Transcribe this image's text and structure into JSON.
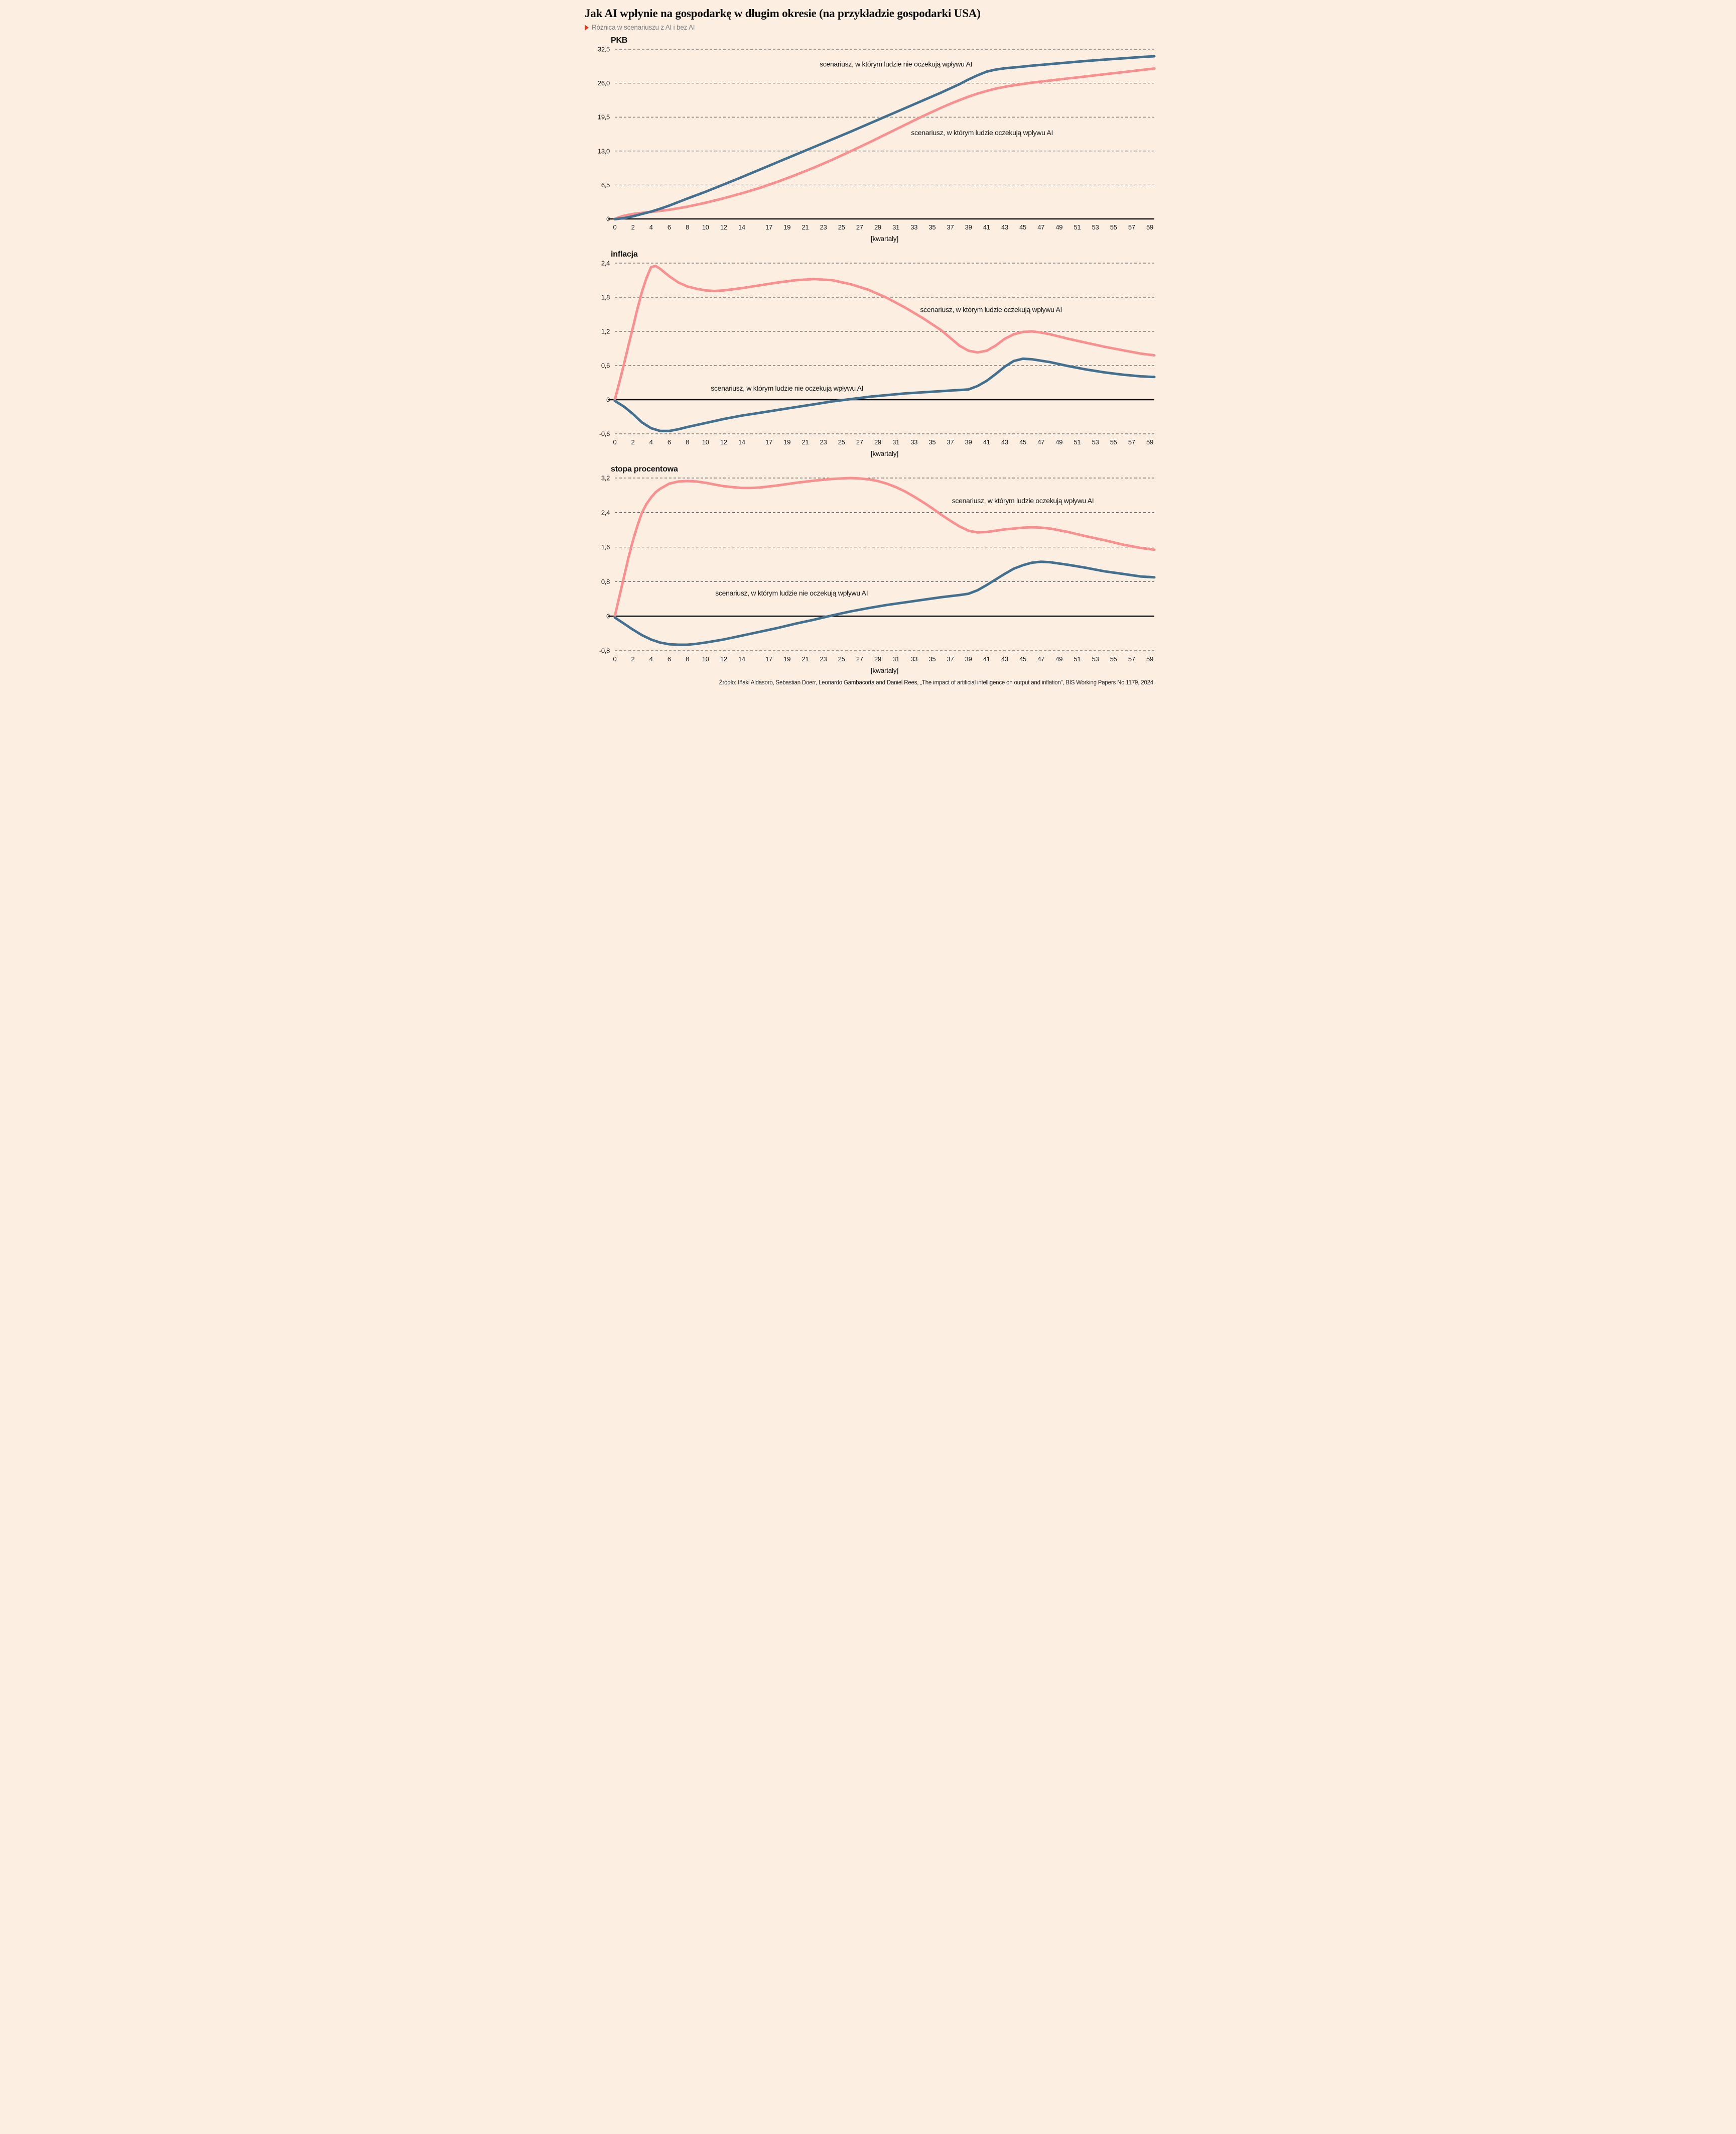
{
  "page": {
    "title": "Jak AI wpłynie na gospodarkę w długim okresie (na przykładzie gospodarki USA)",
    "subtitle": "Różnica w scenariuszu z AI i bez AI",
    "source": "Źródło: Iñaki Aldasoro, Sebastian Doerr, Leonardo Gambacorta and Daniel Rees, „The impact of artificial intelligence on output and inflation”, BIS Working Papers No 1179, 2024",
    "colors": {
      "background": "#fcefe2",
      "blue": "#44708f",
      "pink": "#f9908f",
      "grid": "#3d3d3d",
      "axis": "#111111",
      "text": "#141414",
      "subtitle_gray": "#7d7d7d",
      "accent_red": "#e2371d"
    },
    "icons": {
      "subtitle_marker": "red-triangle-icon"
    }
  },
  "chart_data": [
    {
      "type": "line",
      "title": "PKB",
      "xlabel": "[kwartały]",
      "xlim": [
        0,
        59.5
      ],
      "ylim": [
        0,
        32.5
      ],
      "grid": "horizontal-dashed",
      "legend_position": "inline-annotations",
      "x_ticks": [
        0,
        2,
        4,
        6,
        8,
        10,
        12,
        14,
        17,
        19,
        21,
        23,
        25,
        27,
        29,
        31,
        33,
        35,
        37,
        39,
        41,
        43,
        45,
        47,
        49,
        51,
        53,
        55,
        57,
        59
      ],
      "y_tick_values": [
        32.5,
        26.0,
        19.5,
        13.0,
        6.5,
        0
      ],
      "y_tick_labels": [
        "32,5",
        "26,0",
        "19,5",
        "13,0",
        "6,5",
        "0"
      ],
      "series": [
        {
          "name": "scenariusz, w którym ludzie oczekują wpływu AI",
          "color": "pink",
          "label_x": 40.5,
          "label_y": 16.5,
          "x": [
            0,
            0.5,
            1,
            2,
            3,
            4,
            5,
            6,
            8,
            10,
            12,
            14,
            16,
            18,
            20,
            22,
            24,
            26,
            28,
            30,
            32,
            34,
            36,
            37,
            38,
            39,
            40,
            41,
            42,
            43,
            44,
            46,
            48,
            50,
            52,
            54,
            56,
            58,
            59.5
          ],
          "y": [
            0,
            0.35,
            0.6,
            0.95,
            1.15,
            1.35,
            1.55,
            1.75,
            2.35,
            3.1,
            3.95,
            4.9,
            5.95,
            7.15,
            8.45,
            9.85,
            11.35,
            12.95,
            14.6,
            16.3,
            18.0,
            19.7,
            21.3,
            22.05,
            22.75,
            23.4,
            24.0,
            24.5,
            24.95,
            25.3,
            25.6,
            26.1,
            26.5,
            26.9,
            27.3,
            27.7,
            28.1,
            28.5,
            28.8
          ]
        },
        {
          "name": "scenariusz, w którym ludzie nie oczekują wpływu AI",
          "color": "blue",
          "label_x": 31,
          "label_y": 29.6,
          "x": [
            0,
            1,
            2,
            3,
            4,
            5,
            6,
            8,
            10,
            12,
            14,
            16,
            18,
            20,
            22,
            24,
            26,
            28,
            30,
            32,
            34,
            36,
            38,
            39,
            40,
            41,
            42,
            43,
            44,
            46,
            48,
            50,
            52,
            54,
            56,
            58,
            59.5
          ],
          "y": [
            -0.05,
            0.15,
            0.5,
            0.95,
            1.4,
            1.95,
            2.55,
            3.9,
            5.2,
            6.6,
            8.0,
            9.45,
            10.9,
            12.35,
            13.8,
            15.25,
            16.7,
            18.2,
            19.7,
            21.2,
            22.7,
            24.2,
            25.8,
            26.7,
            27.5,
            28.2,
            28.6,
            28.85,
            29.0,
            29.35,
            29.65,
            29.95,
            30.25,
            30.5,
            30.75,
            31.0,
            31.15
          ]
        }
      ]
    },
    {
      "type": "line",
      "title": "inflacja",
      "xlabel": "[kwartały]",
      "xlim": [
        0,
        59.5
      ],
      "ylim": [
        -0.6,
        2.4
      ],
      "grid": "horizontal-dashed",
      "legend_position": "inline-annotations",
      "x_ticks": [
        0,
        2,
        4,
        6,
        8,
        10,
        12,
        14,
        17,
        19,
        21,
        23,
        25,
        27,
        29,
        31,
        33,
        35,
        37,
        39,
        41,
        43,
        45,
        47,
        49,
        51,
        53,
        55,
        57,
        59
      ],
      "y_tick_values": [
        2.4,
        1.8,
        1.2,
        0.6,
        0,
        -0.6
      ],
      "y_tick_labels": [
        "2,4",
        "1,8",
        "1,2",
        "0,6",
        "0",
        "-0,6"
      ],
      "series": [
        {
          "name": "scenariusz, w którym ludzie oczekują wpływu AI",
          "color": "pink",
          "label_x": 41.5,
          "label_y": 1.58,
          "x": [
            0,
            0.5,
            1,
            1.5,
            2,
            2.5,
            3,
            3.5,
            4,
            4.5,
            5,
            6,
            7,
            8,
            9,
            10,
            11,
            12,
            14,
            16,
            18,
            20,
            22,
            24,
            26,
            28,
            30,
            32,
            34,
            36,
            38,
            39,
            40,
            41,
            42,
            43,
            44,
            45,
            46,
            47,
            48,
            50,
            52,
            54,
            56,
            58,
            59.5
          ],
          "y": [
            0,
            0.3,
            0.62,
            0.95,
            1.27,
            1.6,
            1.9,
            2.14,
            2.33,
            2.35,
            2.3,
            2.17,
            2.06,
            1.99,
            1.95,
            1.92,
            1.91,
            1.92,
            1.96,
            2.01,
            2.06,
            2.1,
            2.12,
            2.1,
            2.03,
            1.93,
            1.79,
            1.62,
            1.43,
            1.22,
            0.95,
            0.86,
            0.83,
            0.86,
            0.95,
            1.07,
            1.15,
            1.19,
            1.2,
            1.18,
            1.15,
            1.07,
            1.0,
            0.93,
            0.87,
            0.81,
            0.78
          ]
        },
        {
          "name": "scenariusz, w którym ludzie nie oczekują wpływu AI",
          "color": "blue",
          "label_x": 19,
          "label_y": 0.2,
          "x": [
            0,
            1,
            2,
            3,
            4,
            5,
            6,
            7,
            8,
            10,
            12,
            14,
            16,
            18,
            20,
            22,
            24,
            26,
            28,
            30,
            32,
            34,
            36,
            38,
            39,
            40,
            41,
            42,
            43,
            44,
            45,
            46,
            48,
            50,
            52,
            54,
            56,
            58,
            59.5
          ],
          "y": [
            -0.02,
            -0.12,
            -0.25,
            -0.4,
            -0.5,
            -0.55,
            -0.55,
            -0.52,
            -0.48,
            -0.41,
            -0.34,
            -0.28,
            -0.23,
            -0.18,
            -0.13,
            -0.08,
            -0.03,
            0.01,
            0.05,
            0.08,
            0.11,
            0.13,
            0.15,
            0.17,
            0.18,
            0.24,
            0.33,
            0.45,
            0.58,
            0.68,
            0.72,
            0.71,
            0.66,
            0.59,
            0.53,
            0.48,
            0.44,
            0.41,
            0.4
          ]
        }
      ]
    },
    {
      "type": "line",
      "title": "stopa procentowa",
      "xlabel": "[kwartały]",
      "xlim": [
        0,
        59.5
      ],
      "ylim": [
        -0.8,
        3.2
      ],
      "grid": "horizontal-dashed",
      "legend_position": "inline-annotations",
      "x_ticks": [
        0,
        2,
        4,
        6,
        8,
        10,
        12,
        14,
        17,
        19,
        21,
        23,
        25,
        27,
        29,
        31,
        33,
        35,
        37,
        39,
        41,
        43,
        45,
        47,
        49,
        51,
        53,
        55,
        57,
        59
      ],
      "y_tick_values": [
        3.2,
        2.4,
        1.6,
        0.8,
        0,
        -0.8
      ],
      "y_tick_labels": [
        "3,2",
        "2,4",
        "1,6",
        "0,8",
        "0",
        "-0,8"
      ],
      "series": [
        {
          "name": "scenariusz, w którym ludzie oczekują wpływu AI",
          "color": "pink",
          "label_x": 45,
          "label_y": 2.67,
          "x": [
            0,
            0.5,
            1,
            1.5,
            2,
            2.5,
            3,
            3.5,
            4,
            4.5,
            5,
            6,
            7,
            8,
            9,
            10,
            11,
            12,
            13,
            14,
            15,
            16,
            18,
            20,
            22,
            24,
            25,
            26,
            27,
            28,
            29,
            30,
            31,
            32,
            33,
            34,
            35,
            36,
            37,
            38,
            39,
            40,
            41,
            42,
            43,
            44,
            45,
            46,
            47,
            48,
            50,
            52,
            54,
            56,
            58,
            59.5
          ],
          "y": [
            0,
            0.45,
            0.9,
            1.35,
            1.75,
            2.1,
            2.4,
            2.6,
            2.75,
            2.87,
            2.95,
            3.07,
            3.12,
            3.13,
            3.12,
            3.09,
            3.05,
            3.01,
            2.99,
            2.97,
            2.97,
            2.98,
            3.03,
            3.09,
            3.14,
            3.18,
            3.19,
            3.2,
            3.19,
            3.17,
            3.13,
            3.07,
            2.99,
            2.89,
            2.77,
            2.64,
            2.5,
            2.35,
            2.21,
            2.08,
            1.98,
            1.94,
            1.95,
            1.98,
            2.01,
            2.03,
            2.05,
            2.06,
            2.05,
            2.03,
            1.95,
            1.85,
            1.76,
            1.66,
            1.58,
            1.54
          ]
        },
        {
          "name": "scenariusz, w którym ludzie nie oczekują wpływu AI",
          "color": "blue",
          "label_x": 19.5,
          "label_y": 0.53,
          "x": [
            0,
            1,
            2,
            3,
            4,
            5,
            6,
            7,
            8,
            9,
            10,
            12,
            14,
            16,
            18,
            20,
            22,
            24,
            26,
            28,
            30,
            32,
            34,
            36,
            38,
            39,
            40,
            41,
            42,
            43,
            44,
            45,
            46,
            47,
            48,
            50,
            52,
            54,
            56,
            58,
            59.5
          ],
          "y": [
            -0.03,
            -0.17,
            -0.31,
            -0.44,
            -0.54,
            -0.61,
            -0.65,
            -0.66,
            -0.66,
            -0.64,
            -0.61,
            -0.54,
            -0.45,
            -0.36,
            -0.27,
            -0.17,
            -0.08,
            0.02,
            0.11,
            0.19,
            0.26,
            0.32,
            0.38,
            0.44,
            0.49,
            0.52,
            0.6,
            0.72,
            0.85,
            0.98,
            1.1,
            1.18,
            1.24,
            1.26,
            1.25,
            1.19,
            1.12,
            1.04,
            0.98,
            0.92,
            0.9
          ]
        }
      ]
    }
  ]
}
